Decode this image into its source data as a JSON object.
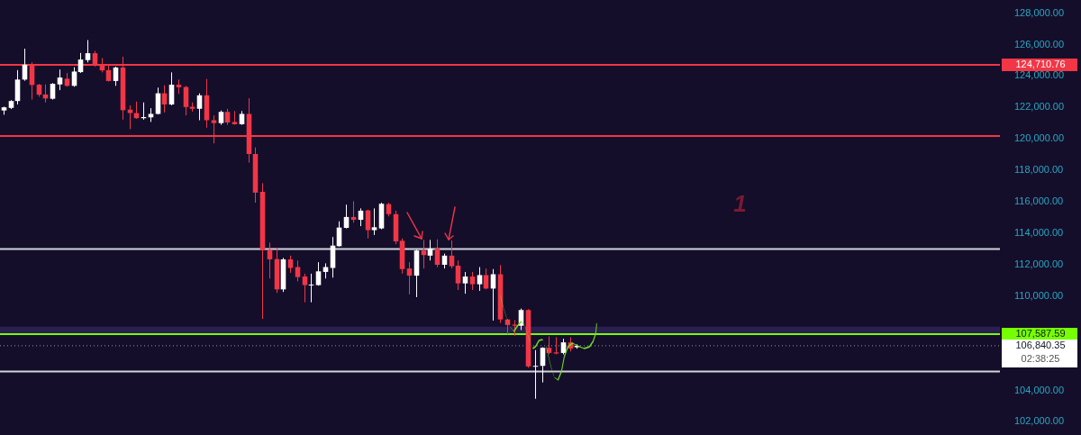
{
  "chart_data": {
    "type": "candlestick",
    "categories": [
      null,
      null,
      null,
      null,
      null,
      null,
      null,
      null,
      null,
      null,
      null,
      null,
      null,
      null,
      null,
      null,
      null,
      null,
      null,
      null,
      null,
      null,
      null,
      null,
      null,
      null,
      null,
      null,
      null,
      null,
      null,
      null,
      null,
      null,
      null,
      null,
      null,
      null,
      null,
      null,
      null,
      null,
      null,
      null,
      null,
      null,
      null,
      null,
      null,
      null,
      null,
      null,
      null,
      null,
      null,
      null,
      null,
      null,
      null,
      null,
      null,
      null,
      null,
      null,
      null,
      null,
      null,
      null,
      null,
      null,
      null,
      null,
      null,
      null,
      null,
      null,
      null,
      null,
      null,
      null,
      null,
      null,
      null,
      null,
      null,
      null,
      null,
      null,
      null,
      null,
      null,
      null,
      null,
      null,
      null,
      null,
      null,
      null,
      null,
      null,
      null,
      null,
      null,
      null,
      null,
      null,
      null,
      null,
      null,
      null,
      null,
      null,
      null,
      null,
      null,
      null,
      null,
      null,
      null,
      null,
      null,
      null,
      null,
      null,
      null,
      null,
      null,
      null,
      null,
      null,
      null,
      null,
      null,
      null,
      null,
      null,
      null,
      null,
      null,
      null,
      null,
      null,
      null
    ],
    "ohlc": [
      [
        121809,
        122050,
        121536,
        122009
      ],
      [
        121973,
        122464,
        121900,
        122410
      ],
      [
        122410,
        124376,
        122191,
        123775
      ],
      [
        123775,
        125742,
        123700,
        124722
      ],
      [
        124686,
        124868,
        122501,
        123429
      ],
      [
        123447,
        123500,
        122683,
        122810
      ],
      [
        122828,
        123466,
        122319,
        122573
      ],
      [
        122555,
        123550,
        122501,
        123502
      ],
      [
        123466,
        124413,
        123102,
        123903
      ],
      [
        123830,
        124194,
        123320,
        123375
      ],
      [
        123375,
        124558,
        123320,
        124285
      ],
      [
        124249,
        125469,
        124200,
        125050
      ],
      [
        125014,
        126288,
        124868,
        125451
      ],
      [
        125451,
        125596,
        124595,
        124722
      ],
      [
        124686,
        125141,
        124231,
        124358
      ],
      [
        124376,
        124686,
        123650,
        123684
      ],
      [
        123684,
        124600,
        123375,
        124540
      ],
      [
        124540,
        125232,
        121226,
        121827
      ],
      [
        121863,
        122136,
        120625,
        121645
      ],
      [
        121645,
        122373,
        121281,
        121317
      ],
      [
        121317,
        122319,
        121226,
        121390
      ],
      [
        121372,
        121954,
        121080,
        121590
      ],
      [
        121590,
        123265,
        121554,
        122901
      ],
      [
        122901,
        123411,
        121681,
        122191
      ],
      [
        122191,
        124231,
        122136,
        123447
      ],
      [
        123447,
        123775,
        122865,
        123284
      ],
      [
        123302,
        123375,
        121499,
        122027
      ],
      [
        122045,
        122319,
        121736,
        121918
      ],
      [
        121917,
        122900,
        121188,
        122773
      ],
      [
        122773,
        123811,
        120715,
        121188
      ],
      [
        121188,
        121498,
        119713,
        121006
      ],
      [
        121006,
        121808,
        120897,
        121717
      ],
      [
        121717,
        121917,
        120897,
        121043
      ],
      [
        121079,
        121771,
        120897,
        120934
      ],
      [
        120934,
        121771,
        120897,
        121589
      ],
      [
        121589,
        122591,
        118493,
        119040
      ],
      [
        119040,
        119458,
        115944,
        116581
      ],
      [
        116636,
        117182,
        108550,
        112939
      ],
      [
        112939,
        113394,
        111118,
        112338
      ],
      [
        112356,
        113085,
        110208,
        110426
      ],
      [
        110426,
        112429,
        110263,
        112338
      ],
      [
        112338,
        112575,
        111482,
        111792
      ],
      [
        111847,
        112265,
        110936,
        111209
      ],
      [
        111246,
        111428,
        109607,
        110700
      ],
      [
        110690,
        111428,
        109607,
        110736
      ],
      [
        110700,
        112156,
        110663,
        111574
      ],
      [
        111537,
        112083,
        111118,
        111847
      ],
      [
        111792,
        113758,
        111173,
        113212
      ],
      [
        113176,
        114760,
        113150,
        114360
      ],
      [
        114342,
        115817,
        114305,
        115034
      ],
      [
        115034,
        116035,
        114670,
        114852
      ],
      [
        114852,
        115580,
        114451,
        115434
      ],
      [
        115452,
        115500,
        113668,
        114196
      ],
      [
        114196,
        115580,
        113886,
        114378
      ],
      [
        114305,
        115944,
        114250,
        115872
      ],
      [
        115852,
        115943,
        115069,
        115214
      ],
      [
        115214,
        115433,
        113302,
        113484
      ],
      [
        113521,
        113667,
        111427,
        111718
      ],
      [
        111755,
        112155,
        110116,
        111299
      ],
      [
        111299,
        112950,
        109934,
        112902
      ],
      [
        112902,
        113575,
        111755,
        112610
      ],
      [
        112574,
        113575,
        112264,
        113029
      ],
      [
        113029,
        113612,
        111846,
        111991
      ],
      [
        111991,
        112701,
        111755,
        112574
      ],
      [
        112574,
        113539,
        111755,
        111900
      ],
      [
        111937,
        112264,
        110389,
        110808
      ],
      [
        110808,
        111536,
        110152,
        111245
      ],
      [
        111245,
        111536,
        110389,
        110753
      ],
      [
        110753,
        111846,
        110334,
        111336
      ],
      [
        111336,
        111755,
        110430,
        110480
      ],
      [
        110480,
        111718,
        108440,
        111390
      ],
      [
        111390,
        111973,
        108295,
        108513
      ],
      [
        108513,
        108550,
        107566,
        108167
      ],
      [
        108185,
        108476,
        107475,
        108112
      ],
      [
        108112,
        109205,
        107840,
        109114
      ],
      [
        109114,
        109169,
        105436,
        105527
      ],
      [
        105509,
        106565,
        103469,
        105563
      ],
      [
        105563,
        106747,
        104507,
        106710
      ],
      [
        106710,
        107439,
        106300,
        106383
      ],
      [
        106419,
        107384,
        106292,
        106347
      ],
      [
        106383,
        107293,
        106292,
        107056
      ],
      [
        107056,
        107384,
        106474,
        106656
      ],
      [
        106747,
        106930,
        106656,
        106840.35
      ],
      null,
      null,
      null,
      null,
      null,
      null,
      null,
      null,
      null,
      null,
      null,
      null,
      null,
      null,
      null,
      null,
      null,
      null,
      null,
      null,
      null,
      null,
      null,
      null,
      null,
      null,
      null,
      null,
      null,
      null,
      null,
      null,
      null,
      null,
      null,
      null,
      null,
      null,
      null,
      null,
      null,
      null,
      null,
      null,
      null,
      null,
      null,
      null,
      null,
      null,
      null,
      null,
      null,
      null,
      null,
      null,
      null,
      null,
      null,
      null
    ],
    "ylim": [
      102000,
      128000
    ],
    "yticks": [
      {
        "value": 102000,
        "label": "102,000.00"
      },
      {
        "value": 104000,
        "label": "104,000.00"
      },
      {
        "value": 110000,
        "label": "110,000.00"
      },
      {
        "value": 112000,
        "label": "112,000.00"
      },
      {
        "value": 114000,
        "label": "114,000.00"
      },
      {
        "value": 116000,
        "label": "116,000.00"
      },
      {
        "value": 118000,
        "label": "118,000.00"
      },
      {
        "value": 120000,
        "label": "120,000.00"
      },
      {
        "value": 122000,
        "label": "122,000.00"
      },
      {
        "value": 124000,
        "label": "124,000.00"
      },
      {
        "value": 126000,
        "label": "126,000.00"
      },
      {
        "value": 128000,
        "label": "128,000.00"
      }
    ],
    "ref_lines": [
      {
        "axis": "y",
        "value": 124710.76,
        "label": "124,710.76",
        "color": "#f23645"
      },
      {
        "axis": "y",
        "value": 120190,
        "color": "#f23645"
      },
      {
        "axis": "y",
        "value": 113000,
        "color": "#d1d4dc"
      },
      {
        "axis": "y",
        "value": 107587.59,
        "label": "107,587.59",
        "color": "#76ff03"
      },
      {
        "axis": "y",
        "value": 106840.35,
        "label": "106,840.35",
        "color": "#9598a1",
        "line_style": "dotted"
      },
      {
        "axis": "y",
        "value": 105200,
        "color": "#d1d4dc"
      }
    ],
    "bands": [
      {
        "axis": "y",
        "from": 107587.59,
        "to": 108050,
        "color": "#2a1f52"
      }
    ],
    "annotations": [
      "02:38:25",
      "1"
    ],
    "grid": false,
    "legend": false
  }
}
